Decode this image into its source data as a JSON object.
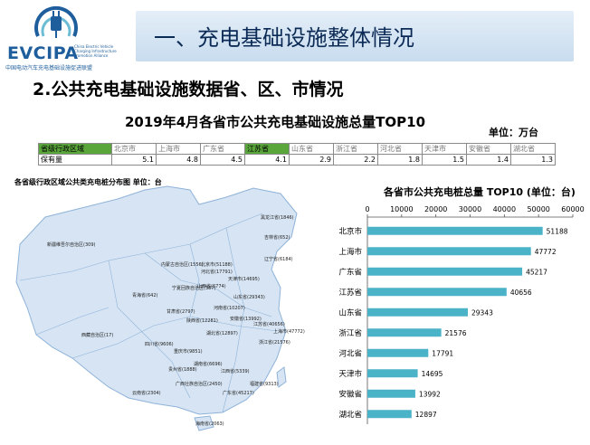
{
  "logo": {
    "name": "EVCIPA",
    "tagline": "China Electric Vehicle Charging Infrastructure Promotion Alliance",
    "cn_name": "中国电动汽车充电基础设施促进联盟"
  },
  "banner": {
    "title": "一、充电基础设施整体情况"
  },
  "subtitle": "2.公共充电基础设施数据省、区、市情况",
  "table_title": "2019年4月各省市公共充电基础设施总量TOP10",
  "unit_label": "单位：万台",
  "table": {
    "header_label": "省级行政区域",
    "row_label": "保有量",
    "provinces": [
      "北京市",
      "上海市",
      "广东省",
      "江苏省",
      "山东省",
      "浙江省",
      "河北省",
      "天津市",
      "安徽省",
      "湖北省"
    ],
    "values": [
      "5.1",
      "4.8",
      "4.5",
      "4.1",
      "2.9",
      "2.2",
      "1.8",
      "1.5",
      "1.4",
      "1.3"
    ]
  },
  "map": {
    "caption": "各省级行政区域公共类充电桩分布图  单位：台",
    "labels": [
      {
        "text": "黑龙江省(1846)"
      },
      {
        "text": "吉林省(652)"
      },
      {
        "text": "辽宁省(6184)"
      },
      {
        "text": "新疆维吾尔自治区(309)"
      },
      {
        "text": "北京市(51188)"
      },
      {
        "text": "内蒙古自治区(1556)"
      },
      {
        "text": "河北省(17791)"
      },
      {
        "text": "天津市(14695)"
      },
      {
        "text": "宁夏回族自治区(387)"
      },
      {
        "text": "山西省(6774)"
      },
      {
        "text": "山东省(29343)"
      },
      {
        "text": "青海省(642)"
      },
      {
        "text": "甘肃省(2797)"
      },
      {
        "text": "河南省(10207)"
      },
      {
        "text": "江苏省(40656)"
      },
      {
        "text": "陕西省(12281)"
      },
      {
        "text": "安徽省(13992)"
      },
      {
        "text": "上海市(47772)"
      },
      {
        "text": "西藏自治区(17)"
      },
      {
        "text": "湖北省(12897)"
      },
      {
        "text": "浙江省(21576)"
      },
      {
        "text": "四川省(9606)"
      },
      {
        "text": "重庆市(9851)"
      },
      {
        "text": "湖南省(6696)"
      },
      {
        "text": "江西省(5339)"
      },
      {
        "text": "贵州省(1888)"
      },
      {
        "text": "福建省(9313)"
      },
      {
        "text": "云南省(2304)"
      },
      {
        "text": "广西壮族自治区(2450)"
      },
      {
        "text": "广东省(45217)"
      },
      {
        "text": "海南省(2063)"
      }
    ]
  },
  "chart_data": {
    "type": "bar",
    "orientation": "horizontal",
    "title": "各省市公共充电桩总量 TOP10  (单位：台)",
    "categories": [
      "北京市",
      "上海市",
      "广东省",
      "江苏省",
      "山东省",
      "浙江省",
      "河北省",
      "天津市",
      "安徽省",
      "湖北省"
    ],
    "values": [
      51188,
      47772,
      45217,
      40656,
      29343,
      21576,
      17791,
      14695,
      13992,
      12897
    ],
    "xlim": [
      0,
      60000
    ],
    "xticks": [
      0,
      10000,
      20000,
      30000,
      40000,
      50000,
      60000
    ],
    "axis_position": "top",
    "grid": false,
    "bar_color": "#4bb3c7"
  },
  "colors": {
    "banner_text": "#0b2a55",
    "logo_blue": "#1f5e9c",
    "table_highlight": "#5aa63b",
    "map_fill": "#d6e4f3",
    "map_border": "#8fb3d9"
  }
}
